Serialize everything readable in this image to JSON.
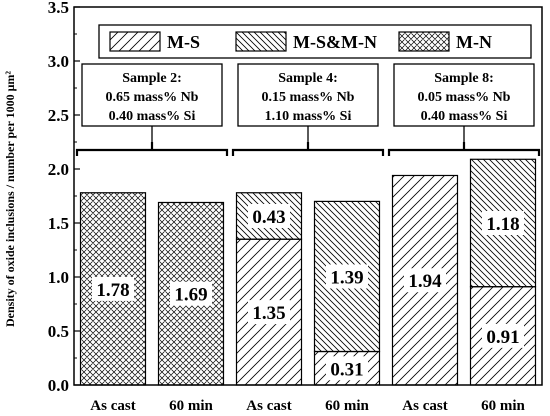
{
  "chart_data": {
    "type": "bar",
    "stacked": true,
    "title": "",
    "xlabel": "",
    "ylabel": "Density of oxide inclusions / number per 1000 μm²",
    "ylim": [
      0,
      3.5
    ],
    "yticks": [
      "0.0",
      "0.5",
      "1.0",
      "1.5",
      "2.0",
      "2.5",
      "3.0",
      "3.5"
    ],
    "grid": false,
    "legend_position": "top",
    "categories": [
      "As cast",
      "60 min",
      "As cast",
      "60 min",
      "As cast",
      "60 min"
    ],
    "series": [
      {
        "name": "M-S",
        "pattern": "forward-hatch",
        "values": [
          0,
          0,
          1.35,
          0.31,
          1.94,
          0.91
        ]
      },
      {
        "name": "M-S&M-N",
        "pattern": "back-hatch",
        "values": [
          0,
          0,
          0.43,
          1.39,
          0,
          1.18
        ]
      },
      {
        "name": "M-N",
        "pattern": "cross-hatch",
        "values": [
          1.78,
          1.69,
          0,
          0,
          0,
          0
        ]
      }
    ],
    "data_labels": [
      {
        "bar": 0,
        "series": "M-N",
        "text": "1.78"
      },
      {
        "bar": 1,
        "series": "M-N",
        "text": "1.69"
      },
      {
        "bar": 2,
        "series": "M-S",
        "text": "1.35"
      },
      {
        "bar": 2,
        "series": "M-S&M-N",
        "text": "0.43"
      },
      {
        "bar": 3,
        "series": "M-S",
        "text": "0.31"
      },
      {
        "bar": 3,
        "series": "M-S&M-N",
        "text": "1.39"
      },
      {
        "bar": 4,
        "series": "M-S",
        "text": "1.94"
      },
      {
        "bar": 5,
        "series": "M-S",
        "text": "0.91"
      },
      {
        "bar": 5,
        "series": "M-S&M-N",
        "text": "1.18"
      }
    ],
    "annotations": [
      {
        "group": [
          0,
          1
        ],
        "lines": [
          "Sample 2:",
          "0.65 mass% Nb",
          "0.40 mass% Si"
        ]
      },
      {
        "group": [
          2,
          3
        ],
        "lines": [
          "Sample 4:",
          "0.15 mass% Nb",
          "1.10 mass% Si"
        ]
      },
      {
        "group": [
          4,
          5
        ],
        "lines": [
          "Sample 8:",
          "0.05 mass% Nb",
          "0.40 mass% Si"
        ]
      }
    ]
  }
}
